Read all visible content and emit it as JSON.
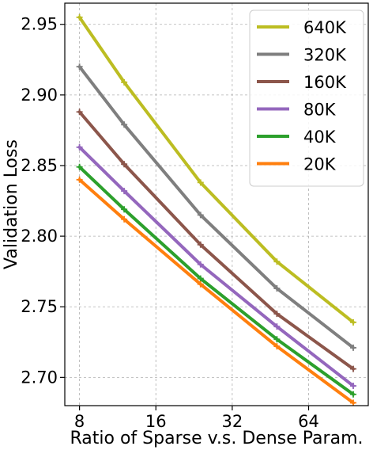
{
  "chart_data": {
    "type": "line",
    "title": "",
    "xlabel": "Ratio of Sparse v.s. Dense Param.",
    "ylabel": "Validation Loss",
    "xscale": "log2",
    "xlim": [
      7,
      110
    ],
    "ylim": [
      2.68,
      2.965
    ],
    "xticks": [
      8,
      16,
      32,
      64
    ],
    "xtick_labels": [
      "8",
      "16",
      "32",
      "64"
    ],
    "yticks": [
      2.7,
      2.75,
      2.8,
      2.85,
      2.9,
      2.95
    ],
    "ytick_labels": [
      "2.70",
      "2.75",
      "2.80",
      "2.85",
      "2.90",
      "2.95"
    ],
    "grid": true,
    "legend_position": "top-right",
    "x": [
      8,
      12,
      24,
      48,
      96
    ],
    "series": [
      {
        "name": "640K",
        "color": "#bcbd22",
        "values": [
          2.955,
          2.909,
          2.838,
          2.782,
          2.739
        ]
      },
      {
        "name": "320K",
        "color": "#7f7f7f",
        "values": [
          2.92,
          2.879,
          2.815,
          2.763,
          2.721
        ]
      },
      {
        "name": "160K",
        "color": "#8c564b",
        "values": [
          2.888,
          2.851,
          2.794,
          2.745,
          2.706
        ]
      },
      {
        "name": "80K",
        "color": "#9467bd",
        "values": [
          2.863,
          2.832,
          2.78,
          2.736,
          2.694
        ]
      },
      {
        "name": "40K",
        "color": "#2ca02c",
        "values": [
          2.849,
          2.819,
          2.77,
          2.727,
          2.688
        ]
      },
      {
        "name": "20K",
        "color": "#ff7f0e",
        "values": [
          2.84,
          2.812,
          2.766,
          2.722,
          2.682
        ]
      }
    ]
  }
}
